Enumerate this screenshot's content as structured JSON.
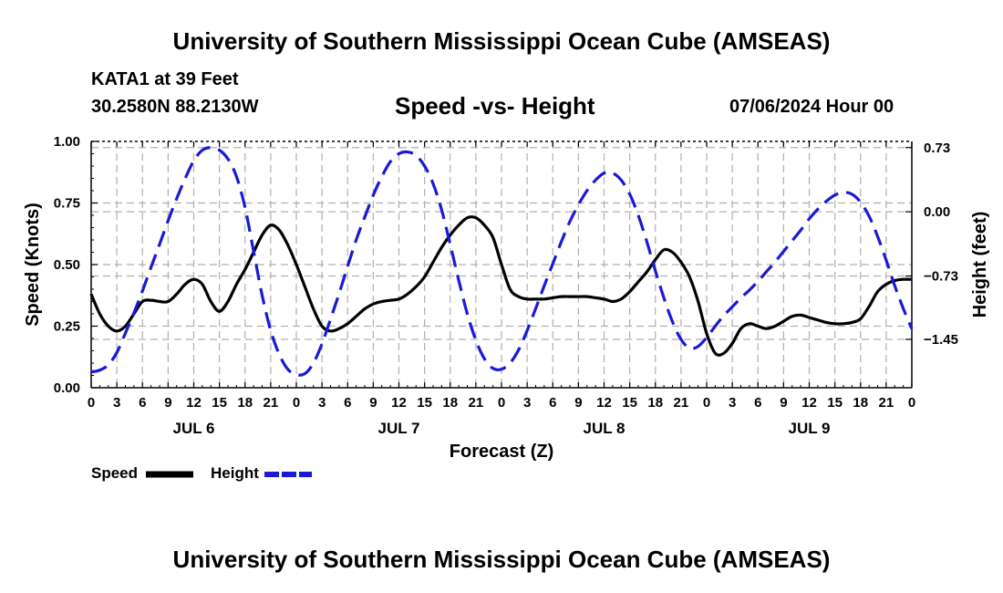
{
  "header": {
    "title": "University of Southern Mississippi Ocean Cube (AMSEAS)",
    "station": "KATA1 at 39 Feet",
    "coords": "30.2580N  88.2130W",
    "subtitle": "Speed -vs- Height",
    "datetime": "07/06/2024 Hour 00"
  },
  "footer": {
    "title": "University of Southern Mississippi Ocean Cube (AMSEAS)"
  },
  "legend": {
    "speed_label": "Speed",
    "height_label": "Height"
  },
  "colors": {
    "speed": "#000000",
    "height": "#1a1ad6",
    "grid": "#b0b0b0"
  },
  "chart_data": {
    "type": "line",
    "title": "Speed -vs- Height",
    "xlabel": "Forecast (Z)",
    "ylabel": "Speed (Knots)",
    "y2label": "Height (feet)",
    "xlim": [
      0,
      96
    ],
    "ylim": [
      0,
      1.0
    ],
    "y2lim": [
      -2.0,
      0.8
    ],
    "x_ticks": [
      0,
      3,
      6,
      9,
      12,
      15,
      18,
      21,
      24,
      27,
      30,
      33,
      36,
      39,
      42,
      45,
      48,
      51,
      54,
      57,
      60,
      63,
      66,
      69,
      72,
      75,
      78,
      81,
      84,
      87,
      90,
      93,
      96
    ],
    "x_tick_labels": [
      "0",
      "3",
      "6",
      "9",
      "12",
      "15",
      "18",
      "21",
      "0",
      "3",
      "6",
      "9",
      "12",
      "15",
      "18",
      "21",
      "0",
      "3",
      "6",
      "9",
      "12",
      "15",
      "18",
      "21",
      "0",
      "3",
      "6",
      "9",
      "12",
      "15",
      "18",
      "21",
      "0"
    ],
    "y_ticks": [
      0,
      0.25,
      0.5,
      0.75,
      1.0
    ],
    "y_tick_labels": [
      "0.00",
      "0.25",
      "0.50",
      "0.75",
      "1.00"
    ],
    "y2_ticks": [
      -1.45,
      -0.73,
      0.0,
      0.73
    ],
    "y2_tick_labels": [
      "−1.45",
      "−0.73",
      "0.00",
      "0.73"
    ],
    "day_labels": [
      {
        "x": 12,
        "label": "JUL 6"
      },
      {
        "x": 36,
        "label": "JUL 7"
      },
      {
        "x": 60,
        "label": "JUL 8"
      },
      {
        "x": 84,
        "label": "JUL 9"
      }
    ],
    "series": [
      {
        "name": "Speed",
        "axis": "left",
        "style": "solid",
        "x": [
          0,
          1,
          2,
          3,
          4,
          5,
          6,
          7,
          8,
          9,
          10,
          11,
          12,
          13,
          14,
          15,
          16,
          17,
          18,
          19,
          20,
          21,
          22,
          23,
          24,
          25,
          26,
          27,
          28,
          29,
          30,
          31,
          32,
          33,
          34,
          35,
          36,
          37,
          38,
          39,
          40,
          41,
          42,
          43,
          44,
          45,
          46,
          47,
          48,
          49,
          50,
          51,
          52,
          53,
          54,
          55,
          56,
          57,
          58,
          59,
          60,
          61,
          62,
          63,
          64,
          65,
          66,
          67,
          68,
          69,
          70,
          71,
          72,
          73,
          74,
          75,
          76,
          77,
          78,
          79,
          80,
          81,
          82,
          83,
          84,
          85,
          86,
          87,
          88,
          89,
          90,
          91,
          92,
          93,
          94,
          95,
          96
        ],
        "values": [
          0.38,
          0.3,
          0.25,
          0.23,
          0.25,
          0.3,
          0.35,
          0.355,
          0.35,
          0.35,
          0.38,
          0.42,
          0.44,
          0.42,
          0.35,
          0.31,
          0.35,
          0.42,
          0.48,
          0.55,
          0.62,
          0.66,
          0.64,
          0.58,
          0.5,
          0.41,
          0.32,
          0.25,
          0.23,
          0.24,
          0.26,
          0.29,
          0.32,
          0.34,
          0.35,
          0.355,
          0.36,
          0.38,
          0.41,
          0.45,
          0.51,
          0.57,
          0.62,
          0.66,
          0.69,
          0.69,
          0.66,
          0.61,
          0.5,
          0.4,
          0.37,
          0.36,
          0.36,
          0.36,
          0.365,
          0.37,
          0.37,
          0.37,
          0.37,
          0.365,
          0.36,
          0.35,
          0.36,
          0.39,
          0.43,
          0.47,
          0.52,
          0.56,
          0.55,
          0.51,
          0.45,
          0.35,
          0.22,
          0.14,
          0.14,
          0.18,
          0.24,
          0.26,
          0.25,
          0.24,
          0.25,
          0.27,
          0.29,
          0.295,
          0.285,
          0.275,
          0.265,
          0.26,
          0.26,
          0.265,
          0.28,
          0.33,
          0.39,
          0.42,
          0.435,
          0.44,
          0.44
        ]
      },
      {
        "name": "Height",
        "axis": "right",
        "style": "dashed",
        "x": [
          0,
          1,
          2,
          3,
          4,
          5,
          6,
          7,
          8,
          9,
          10,
          11,
          12,
          13,
          14,
          15,
          16,
          17,
          18,
          19,
          20,
          21,
          22,
          23,
          24,
          25,
          26,
          27,
          28,
          29,
          30,
          31,
          32,
          33,
          34,
          35,
          36,
          37,
          38,
          39,
          40,
          41,
          42,
          43,
          44,
          45,
          46,
          47,
          48,
          49,
          50,
          51,
          52,
          53,
          54,
          55,
          56,
          57,
          58,
          59,
          60,
          61,
          62,
          63,
          64,
          65,
          66,
          67,
          68,
          69,
          70,
          71,
          72,
          73,
          74,
          75,
          76,
          77,
          78,
          79,
          80,
          81,
          82,
          83,
          84,
          85,
          86,
          87,
          88,
          89,
          90,
          91,
          92,
          93,
          94,
          95,
          96
        ],
        "values": [
          -1.82,
          -1.8,
          -1.74,
          -1.6,
          -1.38,
          -1.15,
          -0.9,
          -0.63,
          -0.37,
          -0.1,
          0.15,
          0.38,
          0.58,
          0.7,
          0.73,
          0.7,
          0.6,
          0.4,
          0.05,
          -0.45,
          -0.95,
          -1.35,
          -1.62,
          -1.79,
          -1.85,
          -1.84,
          -1.72,
          -1.5,
          -1.22,
          -0.93,
          -0.62,
          -0.32,
          -0.06,
          0.19,
          0.4,
          0.57,
          0.66,
          0.68,
          0.64,
          0.52,
          0.32,
          0.02,
          -0.37,
          -0.78,
          -1.16,
          -1.46,
          -1.67,
          -1.78,
          -1.79,
          -1.72,
          -1.57,
          -1.35,
          -1.1,
          -0.84,
          -0.59,
          -0.34,
          -0.11,
          0.08,
          0.24,
          0.36,
          0.44,
          0.44,
          0.36,
          0.2,
          -0.04,
          -0.34,
          -0.67,
          -0.98,
          -1.25,
          -1.45,
          -1.55,
          -1.53,
          -1.43,
          -1.3,
          -1.18,
          -1.08,
          -0.98,
          -0.89,
          -0.79,
          -0.68,
          -0.57,
          -0.45,
          -0.33,
          -0.21,
          -0.08,
          0.03,
          0.12,
          0.19,
          0.22,
          0.2,
          0.11,
          -0.05,
          -0.28,
          -0.55,
          -0.84,
          -1.1,
          -1.33
        ]
      }
    ]
  }
}
